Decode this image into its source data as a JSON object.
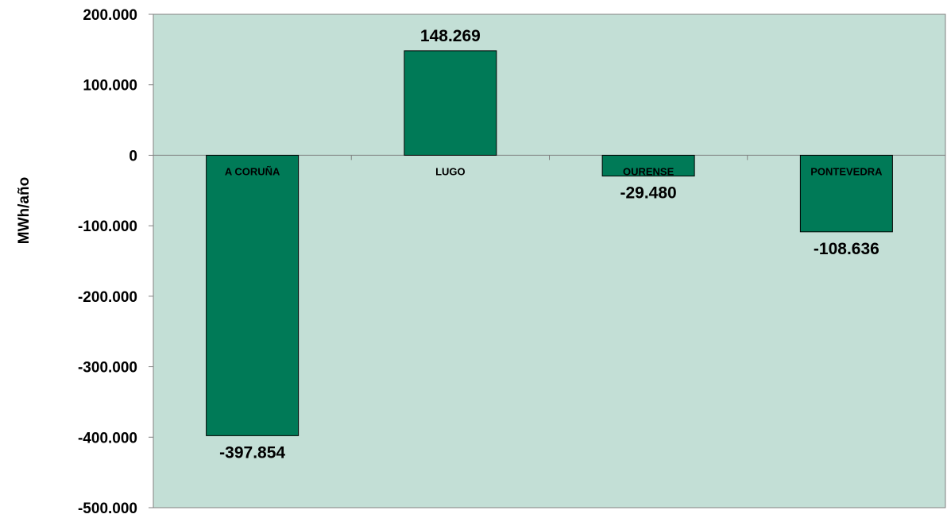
{
  "chart_data": {
    "type": "bar",
    "categories": [
      "A CORUÑA",
      "LUGO",
      "OURENSE",
      "PONTEVEDRA"
    ],
    "values": [
      -397854,
      148269,
      -29480,
      -108636
    ],
    "data_labels": [
      "-397.854",
      "148.269",
      "-29.480",
      "-108.636"
    ],
    "title": "",
    "xlabel": "",
    "ylabel": "MWh/año",
    "ylim": [
      -500000,
      200000
    ],
    "yticks": [
      200000,
      100000,
      0,
      -100000,
      -200000,
      -300000,
      -400000,
      -500000
    ],
    "ytick_labels": [
      "200.000",
      "100.000",
      "0",
      "-100.000",
      "-200.000",
      "-300.000",
      "-400.000",
      "-500.000"
    ],
    "grid": false,
    "legend": "none",
    "colors": {
      "plot_background": "#c3dfd6",
      "bar_fill": "#007a57",
      "bar_stroke": "#000000",
      "axis": "#808080"
    }
  }
}
